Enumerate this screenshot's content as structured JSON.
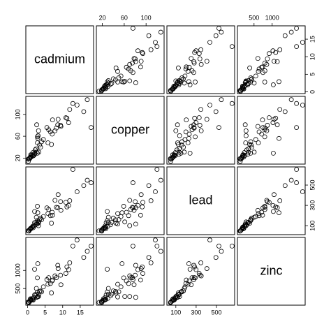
{
  "chart_data": {
    "type": "scatter-matrix",
    "variables": [
      {
        "name": "cadmium",
        "lim": [
          -0.5,
          18.8
        ],
        "ticks": [
          0,
          5,
          10,
          15
        ],
        "values": [
          11.7,
          8.6,
          6.5,
          2.6,
          2.8,
          3.0,
          3.2,
          2.8,
          2.4,
          1.6,
          1.4,
          1.8,
          11.2,
          2.5,
          2.0,
          2.0,
          9.5,
          7.0,
          7.1,
          8.7,
          12.9,
          5.5,
          2.8,
          2.9,
          14.1,
          17.0,
          18.1,
          16.0,
          12.0,
          8.2,
          0.8,
          0.2,
          0.2,
          0.4,
          1.2,
          0.8,
          3.7,
          4.5,
          5.8,
          3.4,
          0.6,
          1.0,
          2.2,
          9.4,
          6.0,
          10.9,
          4.0,
          1.5,
          0.9,
          7.8,
          3.1,
          6.8
        ]
      },
      {
        "name": "copper",
        "lim": [
          9,
          133
        ],
        "ticks": [
          20,
          60,
          100
        ],
        "values": [
          85,
          81,
          68,
          81,
          48,
          61,
          31,
          29,
          37,
          24,
          25,
          25,
          93,
          31,
          27,
          29,
          78,
          64,
          90,
          91,
          120,
          76,
          59,
          56,
          117,
          127,
          76,
          105,
          109,
          75,
          22,
          18,
          14,
          19,
          26,
          21,
          40,
          54,
          48,
          44,
          19,
          22,
          35,
          80,
          72,
          94,
          50,
          30,
          26,
          70,
          70,
          45
        ]
      },
      {
        "name": "lead",
        "lim": [
          12,
          679
        ],
        "ticks": [
          100,
          300,
          500
        ],
        "values": [
          299,
          277,
          199,
          116,
          117,
          137,
          132,
          150,
          133,
          80,
          86,
          97,
          285,
          183,
          130,
          240,
          251,
          232,
          203,
          406,
          654,
          276,
          291,
          228,
          435,
          548,
          524,
          495,
          346,
          281,
          72,
          51,
          49,
          47,
          83,
          67,
          175,
          190,
          220,
          158,
          60,
          76,
          110,
          337,
          260,
          330,
          160,
          95,
          69,
          350,
          100,
          125
        ]
      },
      {
        "name": "zinc",
        "lim": [
          42,
          1910
        ],
        "ticks": [
          500,
          1000
        ],
        "values": [
          1022,
          1141,
          640,
          257,
          269,
          281,
          346,
          406,
          347,
          183,
          189,
          251,
          1096,
          504,
          326,
          1032,
          606,
          711,
          735,
          1052,
          1672,
          746,
          796,
          1188,
          1839,
          1528,
          1671,
          1357,
          1211,
          801,
          217,
          130,
          119,
          113,
          198,
          166,
          435,
          548,
          620,
          420,
          150,
          178,
          300,
          868,
          800,
          917,
          410,
          230,
          200,
          850,
          280,
          380
        ]
      }
    ]
  }
}
